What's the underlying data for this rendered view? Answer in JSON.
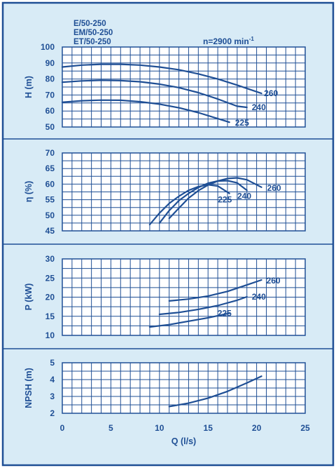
{
  "header": {
    "models": [
      "E/50-250",
      "EM/50-250",
      "ET/50-250"
    ],
    "speed": "n=2900 min",
    "speed_exp": "-1"
  },
  "colors": {
    "frame": "#1f4f95",
    "background": "#d8ebf6",
    "grid": "#1f4f95",
    "curve": "#1f4f95",
    "text": "#1f4f95"
  },
  "chart_data": [
    {
      "type": "line",
      "ylabel": "H (m)",
      "xlim": [
        0,
        25
      ],
      "ylim": [
        50,
        100
      ],
      "yticks": [
        "50",
        "60",
        "70",
        "80",
        "90",
        "100"
      ],
      "grid": true,
      "series": [
        {
          "name": "260",
          "x": [
            0,
            2,
            4,
            6,
            8,
            10,
            12,
            14,
            16,
            18,
            20.5
          ],
          "y": [
            87.5,
            88.7,
            89.2,
            89.2,
            88.7,
            87.5,
            85.8,
            83.2,
            80,
            76.2,
            71
          ]
        },
        {
          "name": "240",
          "x": [
            0,
            2,
            4,
            6,
            8,
            10,
            12,
            14,
            16,
            18,
            19
          ],
          "y": [
            78,
            78.8,
            79.2,
            79,
            78.3,
            76.8,
            74.6,
            71.5,
            67.5,
            63,
            62.3
          ]
        },
        {
          "name": "225",
          "x": [
            0,
            2,
            4,
            6,
            8,
            10,
            12,
            14,
            16,
            17.2
          ],
          "y": [
            65.5,
            66.4,
            66.8,
            66.7,
            65.8,
            64.3,
            62,
            59,
            55.2,
            53
          ]
        }
      ]
    },
    {
      "type": "line",
      "ylabel": "η (%)",
      "xlim": [
        0,
        25
      ],
      "ylim": [
        45,
        70
      ],
      "yticks": [
        "45",
        "50",
        "55",
        "60",
        "65",
        "70"
      ],
      "grid": true,
      "series": [
        {
          "name": "260",
          "x": [
            11,
            12,
            13,
            14,
            15,
            16,
            17,
            18,
            19,
            20.5
          ],
          "y": [
            49,
            52.3,
            55.5,
            57.9,
            59.7,
            61,
            61.8,
            62,
            61.4,
            59
          ]
        },
        {
          "name": "240",
          "x": [
            10,
            11,
            12,
            13,
            14,
            15,
            16,
            17,
            18,
            19
          ],
          "y": [
            47.5,
            51.5,
            54.7,
            57,
            58.9,
            60.3,
            61,
            61.1,
            60.4,
            58
          ]
        },
        {
          "name": "225",
          "x": [
            9,
            10,
            11,
            12,
            13,
            14,
            15,
            16,
            17.2
          ],
          "y": [
            47,
            50.7,
            53.8,
            56.1,
            58,
            59.2,
            59.8,
            59.4,
            57
          ]
        }
      ]
    },
    {
      "type": "line",
      "ylabel": "P (kW)",
      "xlim": [
        0,
        25
      ],
      "ylim": [
        10,
        30
      ],
      "yticks": [
        "10",
        "15",
        "20",
        "25",
        "30"
      ],
      "grid": true,
      "series": [
        {
          "name": "260",
          "x": [
            11,
            13,
            15,
            17,
            19,
            20.5
          ],
          "y": [
            19,
            19.5,
            20.3,
            21.5,
            23.2,
            24.5
          ]
        },
        {
          "name": "240",
          "x": [
            10,
            12,
            14,
            16,
            18,
            19
          ],
          "y": [
            15.5,
            16,
            16.8,
            17.8,
            19.2,
            20.1
          ]
        },
        {
          "name": "225",
          "x": [
            9,
            11,
            13,
            15,
            17.2
          ],
          "y": [
            12.2,
            12.8,
            13.7,
            14.6,
            15.8
          ]
        }
      ]
    },
    {
      "type": "line",
      "ylabel": "NPSH (m)",
      "xlabel": "Q (l/s)",
      "xlim": [
        0,
        25
      ],
      "ylim": [
        2,
        5
      ],
      "xticks": [
        "0",
        "5",
        "10",
        "15",
        "20",
        "25"
      ],
      "yticks": [
        "2",
        "3",
        "4",
        "5"
      ],
      "grid": true,
      "series": [
        {
          "x": [
            11,
            13,
            15,
            17,
            19,
            20.5
          ],
          "y": [
            2.4,
            2.6,
            2.9,
            3.3,
            3.8,
            4.2
          ]
        }
      ]
    }
  ]
}
